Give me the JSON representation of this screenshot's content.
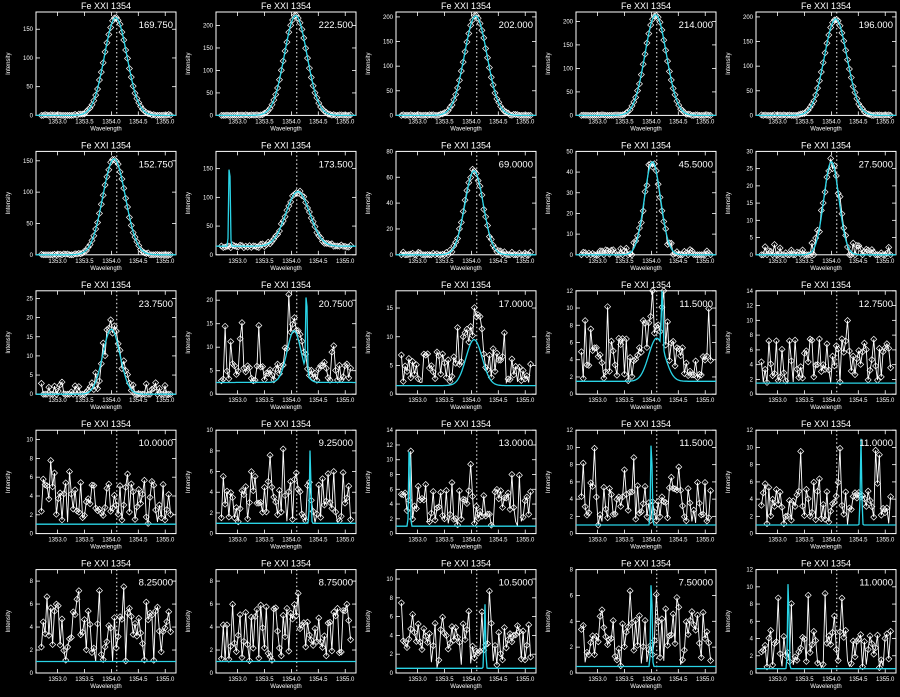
{
  "colors": {
    "background": "#000000",
    "observed": "#ffffff",
    "fit": "#2ad4e6"
  },
  "chart_data": {
    "type": "line",
    "layout": {
      "rows": 5,
      "cols": 5
    },
    "xlabel": "Wavelength",
    "ylabel": "Intensity",
    "xlim": [
      1352.6,
      1355.2
    ],
    "line_center": 1354.1,
    "x_ticks": [
      1353.0,
      1353.5,
      1354.0,
      1354.5,
      1355.0
    ],
    "x_tick_labels": [
      "1353.0",
      "1353.5",
      "1354.0",
      "1354.5",
      "1355.0"
    ],
    "panels": [
      {
        "title": "Fe XXI 1354",
        "peak_label": "169.750",
        "ylim": [
          0,
          180
        ],
        "y_ticks": [
          0,
          50,
          100,
          150
        ],
        "kind": "gauss",
        "peak": 170,
        "center": 1354.08,
        "sigma": 0.21,
        "noise": 1.5,
        "seed": 1
      },
      {
        "title": "Fe XXI 1354",
        "peak_label": "222.500",
        "ylim": [
          0,
          230
        ],
        "y_ticks": [
          0,
          50,
          100,
          150,
          200
        ],
        "kind": "gauss",
        "peak": 222,
        "center": 1354.08,
        "sigma": 0.21,
        "noise": 1.5,
        "seed": 2
      },
      {
        "title": "Fe XXI 1354",
        "peak_label": "202.000",
        "ylim": [
          0,
          210
        ],
        "y_ticks": [
          0,
          50,
          100,
          150,
          200
        ],
        "kind": "gauss",
        "peak": 202,
        "center": 1354.08,
        "sigma": 0.21,
        "noise": 1.5,
        "seed": 3
      },
      {
        "title": "Fe XXI 1354",
        "peak_label": "214.000",
        "ylim": [
          0,
          220
        ],
        "y_ticks": [
          0,
          50,
          100,
          150,
          200
        ],
        "kind": "gauss",
        "peak": 214,
        "center": 1354.08,
        "sigma": 0.2,
        "noise": 1.5,
        "seed": 4
      },
      {
        "title": "Fe XXI 1354",
        "peak_label": "196.000",
        "ylim": [
          0,
          210
        ],
        "y_ticks": [
          0,
          50,
          100,
          150,
          200
        ],
        "kind": "gauss",
        "peak": 196,
        "center": 1354.08,
        "sigma": 0.21,
        "noise": 1.5,
        "seed": 5
      },
      {
        "title": "Fe XXI 1354",
        "peak_label": "152.750",
        "ylim": [
          0,
          165
        ],
        "y_ticks": [
          0,
          50,
          100,
          150
        ],
        "kind": "gauss",
        "peak": 153,
        "center": 1354.05,
        "sigma": 0.21,
        "noise": 1.5,
        "seed": 6
      },
      {
        "title": "Fe XXI 1354",
        "peak_label": "173.500",
        "ylim": [
          0,
          180
        ],
        "y_ticks": [
          0,
          50,
          100,
          150
        ],
        "kind": "gauss",
        "peak": 95,
        "center": 1354.12,
        "sigma": 0.22,
        "noise": 3,
        "baseline": 15,
        "spike_x": 1352.85,
        "spike_h": 172,
        "seed": 7
      },
      {
        "title": "Fe XXI 1354",
        "peak_label": "69.0000",
        "ylim": [
          0,
          80
        ],
        "y_ticks": [
          0,
          20,
          40,
          60,
          80
        ],
        "kind": "gauss",
        "peak": 65,
        "center": 1354.05,
        "sigma": 0.17,
        "noise": 2.5,
        "seed": 8
      },
      {
        "title": "Fe XXI 1354",
        "peak_label": "45.5000",
        "ylim": [
          0,
          50
        ],
        "y_ticks": [
          0,
          10,
          20,
          30,
          40,
          50
        ],
        "kind": "gauss",
        "peak": 45,
        "center": 1354.02,
        "sigma": 0.15,
        "noise": 3,
        "seed": 9
      },
      {
        "title": "Fe XXI 1354",
        "peak_label": "27.5000",
        "ylim": [
          0,
          30
        ],
        "y_ticks": [
          0,
          5,
          10,
          15,
          20,
          25,
          30
        ],
        "kind": "gauss",
        "peak": 27,
        "center": 1354.0,
        "sigma": 0.14,
        "noise": 3,
        "seed": 10
      },
      {
        "title": "Fe XXI 1354",
        "peak_label": "23.7500",
        "ylim": [
          0,
          27
        ],
        "y_ticks": [
          0,
          5,
          10,
          15,
          20,
          25
        ],
        "kind": "gauss",
        "peak": 17,
        "center": 1354.0,
        "sigma": 0.16,
        "noise": 3.5,
        "seed": 11
      },
      {
        "title": "Fe XXI 1354",
        "peak_label": "20.7500",
        "ylim": [
          0,
          22
        ],
        "y_ticks": [
          0,
          5,
          10,
          15,
          20
        ],
        "kind": "noise",
        "peak": 11,
        "center": 1354.05,
        "sigma": 0.13,
        "baseline": 2.5,
        "noise": 4,
        "spike_x": 1354.28,
        "spike_h": 20,
        "seed": 12
      },
      {
        "title": "Fe XXI 1354",
        "peak_label": "17.0000",
        "ylim": [
          0,
          18
        ],
        "y_ticks": [
          0,
          5,
          10,
          15
        ],
        "kind": "noise",
        "peak": 8,
        "center": 1354.05,
        "sigma": 0.15,
        "baseline": 1.5,
        "noise": 6,
        "seed": 13
      },
      {
        "title": "Fe XXI 1354",
        "peak_label": "11.5000",
        "ylim": [
          0,
          12
        ],
        "y_ticks": [
          0,
          2,
          4,
          6,
          8,
          10,
          12
        ],
        "kind": "noise",
        "peak": 5,
        "center": 1354.1,
        "sigma": 0.15,
        "baseline": 1.5,
        "noise": 5,
        "spike_x": 1354.2,
        "spike_h": 11,
        "seed": 14
      },
      {
        "title": "Fe XXI 1354",
        "peak_label": "12.7500",
        "ylim": [
          0,
          14
        ],
        "y_ticks": [
          0,
          2,
          4,
          6,
          8,
          10,
          12,
          14
        ],
        "kind": "noise",
        "baseline": 1.5,
        "noise": 6,
        "seed": 15
      },
      {
        "title": "Fe XXI 1354",
        "peak_label": "10.0000",
        "ylim": [
          0,
          11
        ],
        "y_ticks": [
          0,
          2,
          4,
          6,
          8,
          10
        ],
        "kind": "noise",
        "baseline": 1,
        "noise": 5,
        "seed": 16
      },
      {
        "title": "Fe XXI 1354",
        "peak_label": "9.25000",
        "ylim": [
          0,
          10
        ],
        "y_ticks": [
          0,
          2,
          4,
          6,
          8,
          10
        ],
        "kind": "noise",
        "baseline": 1,
        "noise": 5,
        "spike_x": 1354.35,
        "spike_h": 7.5,
        "seed": 17
      },
      {
        "title": "Fe XXI 1354",
        "peak_label": "13.0000",
        "ylim": [
          0,
          14
        ],
        "y_ticks": [
          0,
          2,
          4,
          6,
          8,
          10,
          12,
          14
        ],
        "kind": "noise",
        "baseline": 1,
        "noise": 5,
        "spike_x": 1352.85,
        "spike_h": 13,
        "seed": 18
      },
      {
        "title": "Fe XXI 1354",
        "peak_label": "11.5000",
        "ylim": [
          0,
          12
        ],
        "y_ticks": [
          0,
          2,
          4,
          6,
          8,
          10,
          12
        ],
        "kind": "noise",
        "baseline": 1,
        "noise": 5,
        "spike_x": 1354.0,
        "spike_h": 11,
        "seed": 19
      },
      {
        "title": "Fe XXI 1354",
        "peak_label": "11.0000",
        "ylim": [
          0,
          12
        ],
        "y_ticks": [
          0,
          2,
          4,
          6,
          8,
          10,
          12
        ],
        "kind": "noise",
        "baseline": 1,
        "noise": 5,
        "spike_x": 1354.55,
        "spike_h": 10,
        "seed": 20
      },
      {
        "title": "Fe XXI 1354",
        "peak_label": "8.25000",
        "ylim": [
          0,
          9
        ],
        "y_ticks": [
          0,
          2,
          4,
          6,
          8
        ],
        "kind": "noise",
        "baseline": 1,
        "noise": 5,
        "seed": 21
      },
      {
        "title": "Fe XXI 1354",
        "peak_label": "8.75000",
        "ylim": [
          0,
          9
        ],
        "y_ticks": [
          0,
          2,
          4,
          6,
          8
        ],
        "kind": "noise",
        "baseline": 1,
        "noise": 5,
        "seed": 22
      },
      {
        "title": "Fe XXI 1354",
        "peak_label": "10.5000",
        "ylim": [
          0,
          11
        ],
        "y_ticks": [
          0,
          2,
          4,
          6,
          8,
          10
        ],
        "kind": "noise",
        "baseline": 0.5,
        "noise": 5,
        "spike_x": 1354.25,
        "spike_h": 7,
        "seed": 23
      },
      {
        "title": "Fe XXI 1354",
        "peak_label": "7.50000",
        "ylim": [
          0,
          8
        ],
        "y_ticks": [
          0,
          2,
          4,
          6,
          8
        ],
        "kind": "noise",
        "baseline": 0.5,
        "noise": 4.5,
        "spike_x": 1354.0,
        "spike_h": 7.5,
        "seed": 24
      },
      {
        "title": "Fe XXI 1354",
        "peak_label": "11.0000",
        "ylim": [
          0,
          12
        ],
        "y_ticks": [
          0,
          2,
          4,
          6,
          8,
          10,
          12
        ],
        "kind": "noise",
        "baseline": 0.5,
        "noise": 4.5,
        "spike_x": 1353.2,
        "spike_h": 11,
        "seed": 25
      }
    ]
  }
}
